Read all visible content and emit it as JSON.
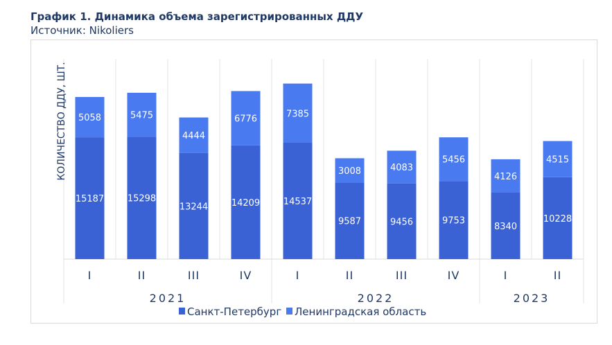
{
  "title": "График 1. Динамика объема зарегистрированных ДДУ",
  "source": "Источник: Nikoliers",
  "chart_data": {
    "type": "bar",
    "stacked": true,
    "ylabel": "КОЛИЧЕСТВО ДДУ, ШТ.",
    "categories": [
      "I",
      "II",
      "III",
      "IV",
      "I",
      "II",
      "III",
      "IV",
      "I",
      "II"
    ],
    "groups": [
      {
        "label": "2021",
        "count": 4
      },
      {
        "label": "2022",
        "count": 4
      },
      {
        "label": "2023",
        "count": 2
      }
    ],
    "series": [
      {
        "name": "Санкт-Петербург",
        "color": "#3a62d4",
        "values": [
          15187,
          15298,
          13244,
          14209,
          14537,
          9587,
          9456,
          9753,
          8340,
          10228
        ]
      },
      {
        "name": "Ленинградская область",
        "color": "#4a7af0",
        "values": [
          5058,
          5475,
          4444,
          6776,
          7385,
          3008,
          4083,
          5456,
          4126,
          4515
        ]
      }
    ],
    "grid": "vertical category separators",
    "legend": "bottom"
  }
}
